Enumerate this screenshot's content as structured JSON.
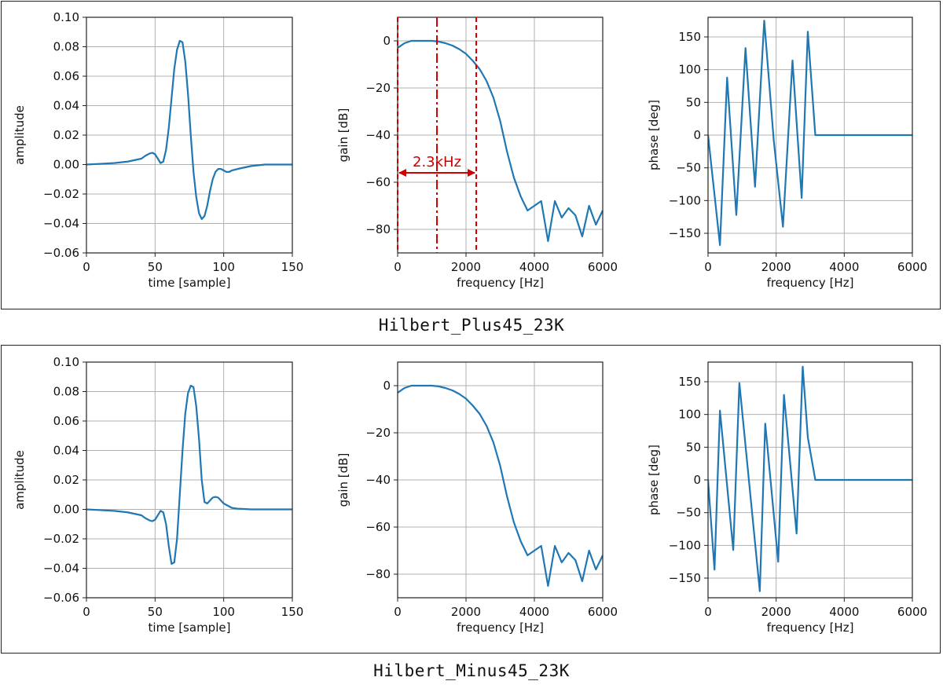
{
  "panels": [
    {
      "caption": "Hilbert_Plus45_23K",
      "annotation": {
        "label": "2.3kHz",
        "center_hz": 1150,
        "band_left_hz": 0,
        "band_right_hz": 2300
      }
    },
    {
      "caption": "Hilbert_Minus45_23K",
      "annotation": null
    }
  ],
  "colors": {
    "line": "#1f77b4",
    "annotation": "#cc0000",
    "grid": "#b0b0b0",
    "frame": "#222222"
  },
  "chart_data": [
    {
      "type": "line",
      "panel": 0,
      "xlabel": "time [sample]",
      "ylabel": "amplitude",
      "xlim": [
        0,
        150
      ],
      "ylim": [
        -0.06,
        0.1
      ],
      "xticks": [
        0,
        50,
        100,
        150
      ],
      "yticks": [
        -0.06,
        -0.04,
        -0.02,
        0.0,
        0.02,
        0.04,
        0.06,
        0.08,
        0.1
      ],
      "xticklabels": [
        "0",
        "50",
        "100",
        "150"
      ],
      "yticklabels": [
        "−0.06",
        "−0.04",
        "−0.02",
        "0.00",
        "0.02",
        "0.04",
        "0.06",
        "0.08",
        "0.10"
      ],
      "grid": true,
      "x": [
        0,
        10,
        20,
        30,
        35,
        40,
        43,
        46,
        48,
        50,
        52,
        54,
        56,
        58,
        60,
        62,
        64,
        66,
        68,
        70,
        72,
        74,
        76,
        78,
        80,
        82,
        84,
        86,
        88,
        90,
        92,
        94,
        96,
        98,
        100,
        102,
        104,
        106,
        110,
        120,
        130,
        150
      ],
      "y": [
        0.0,
        0.0005,
        0.001,
        0.002,
        0.003,
        0.004,
        0.006,
        0.0075,
        0.008,
        0.007,
        0.004,
        0.001,
        0.002,
        0.01,
        0.025,
        0.045,
        0.065,
        0.078,
        0.084,
        0.083,
        0.07,
        0.048,
        0.02,
        -0.005,
        -0.022,
        -0.033,
        -0.037,
        -0.035,
        -0.028,
        -0.018,
        -0.01,
        -0.005,
        -0.003,
        -0.003,
        -0.004,
        -0.005,
        -0.005,
        -0.004,
        -0.003,
        -0.001,
        0.0,
        0.0
      ]
    },
    {
      "type": "line",
      "panel": 0,
      "xlabel": "frequency [Hz]",
      "ylabel": "gain [dB]",
      "xlim": [
        0,
        6000
      ],
      "ylim": [
        -90,
        10
      ],
      "xticks": [
        0,
        2000,
        4000,
        6000
      ],
      "yticks": [
        -80,
        -60,
        -40,
        -20,
        0
      ],
      "xticklabels": [
        "0",
        "2000",
        "4000",
        "6000"
      ],
      "yticklabels": [
        "−80",
        "−60",
        "−40",
        "−20",
        "0"
      ],
      "grid": true,
      "x": [
        0,
        200,
        400,
        600,
        800,
        1000,
        1200,
        1400,
        1600,
        1800,
        2000,
        2200,
        2400,
        2600,
        2800,
        3000,
        3200,
        3400,
        3600,
        3800,
        4000,
        4200,
        4400,
        4600,
        4800,
        5000,
        5200,
        5400,
        5600,
        5800,
        6000
      ],
      "y": [
        -3,
        -1,
        0,
        0,
        0,
        0,
        -0.3,
        -1,
        -2,
        -3.5,
        -5.5,
        -8.5,
        -12,
        -17,
        -24,
        -34,
        -47,
        -58,
        -66,
        -72,
        -70,
        -68,
        -85,
        -68,
        -75,
        -71,
        -74,
        -83,
        -70,
        -78,
        -72
      ]
    },
    {
      "type": "line",
      "panel": 0,
      "xlabel": "frequency [Hz]",
      "ylabel": "phase [deg]",
      "xlim": [
        0,
        6000
      ],
      "ylim": [
        -180,
        180
      ],
      "xticks": [
        0,
        2000,
        4000,
        6000
      ],
      "yticks": [
        -150,
        -100,
        -50,
        0,
        50,
        100,
        150
      ],
      "xticklabels": [
        "0",
        "2000",
        "4000",
        "6000"
      ],
      "yticklabels": [
        "−150",
        "−100",
        "−50",
        "0",
        "50",
        "100",
        "150"
      ],
      "grid": true,
      "x": [
        0,
        350,
        560,
        830,
        1100,
        1380,
        1650,
        1930,
        2200,
        2480,
        2750,
        2930,
        3150,
        6000
      ],
      "y": [
        0,
        -168,
        88,
        -122,
        133,
        -79,
        175,
        -8,
        -140,
        114,
        -96,
        158,
        0,
        0
      ]
    },
    {
      "type": "line",
      "panel": 1,
      "xlabel": "time [sample]",
      "ylabel": "amplitude",
      "xlim": [
        0,
        150
      ],
      "ylim": [
        -0.06,
        0.1
      ],
      "xticks": [
        0,
        50,
        100,
        150
      ],
      "yticks": [
        -0.06,
        -0.04,
        -0.02,
        0.0,
        0.02,
        0.04,
        0.06,
        0.08,
        0.1
      ],
      "xticklabels": [
        "0",
        "50",
        "100",
        "150"
      ],
      "yticklabels": [
        "−0.06",
        "−0.04",
        "−0.02",
        "0.00",
        "0.02",
        "0.04",
        "0.06",
        "0.08",
        "0.10"
      ],
      "grid": true,
      "x": [
        0,
        10,
        20,
        30,
        35,
        40,
        43,
        46,
        48,
        50,
        52,
        54,
        56,
        58,
        60,
        62,
        64,
        66,
        68,
        70,
        72,
        74,
        76,
        78,
        80,
        82,
        84,
        86,
        88,
        90,
        92,
        94,
        96,
        98,
        100,
        102,
        104,
        106,
        110,
        120,
        130,
        150
      ],
      "y": [
        0.0,
        -0.0005,
        -0.001,
        -0.002,
        -0.003,
        -0.004,
        -0.006,
        -0.0075,
        -0.008,
        -0.007,
        -0.004,
        -0.001,
        -0.002,
        -0.01,
        -0.025,
        -0.037,
        -0.036,
        -0.02,
        0.01,
        0.04,
        0.065,
        0.079,
        0.084,
        0.083,
        0.07,
        0.048,
        0.02,
        0.005,
        0.004,
        0.006,
        0.008,
        0.0085,
        0.008,
        0.006,
        0.004,
        0.003,
        0.002,
        0.001,
        0.0005,
        0.0,
        0.0,
        0.0
      ]
    },
    {
      "type": "line",
      "panel": 1,
      "xlabel": "frequency [Hz]",
      "ylabel": "gain [dB]",
      "xlim": [
        0,
        6000
      ],
      "ylim": [
        -90,
        10
      ],
      "xticks": [
        0,
        2000,
        4000,
        6000
      ],
      "yticks": [
        -80,
        -60,
        -40,
        -20,
        0
      ],
      "xticklabels": [
        "0",
        "2000",
        "4000",
        "6000"
      ],
      "yticklabels": [
        "−80",
        "−60",
        "−40",
        "−20",
        "0"
      ],
      "grid": true,
      "x": [
        0,
        200,
        400,
        600,
        800,
        1000,
        1200,
        1400,
        1600,
        1800,
        2000,
        2200,
        2400,
        2600,
        2800,
        3000,
        3200,
        3400,
        3600,
        3800,
        4000,
        4200,
        4400,
        4600,
        4800,
        5000,
        5200,
        5400,
        5600,
        5800,
        6000
      ],
      "y": [
        -3,
        -1,
        0,
        0,
        0,
        0,
        -0.3,
        -1,
        -2,
        -3.5,
        -5.5,
        -8.5,
        -12,
        -17,
        -24,
        -34,
        -47,
        -58,
        -66,
        -72,
        -70,
        -68,
        -85,
        -68,
        -75,
        -71,
        -74,
        -83,
        -70,
        -78,
        -72
      ]
    },
    {
      "type": "line",
      "panel": 1,
      "xlabel": "frequency [Hz]",
      "ylabel": "phase [deg]",
      "xlim": [
        0,
        6000
      ],
      "ylim": [
        -180,
        180
      ],
      "xticks": [
        0,
        2000,
        4000,
        6000
      ],
      "yticks": [
        -150,
        -100,
        -50,
        0,
        50,
        100,
        150
      ],
      "xticklabels": [
        "0",
        "2000",
        "4000",
        "6000"
      ],
      "yticklabels": [
        "−150",
        "−100",
        "−50",
        "0",
        "50",
        "100",
        "150"
      ],
      "grid": true,
      "x": [
        0,
        190,
        350,
        740,
        920,
        1520,
        1680,
        2060,
        2230,
        2600,
        2780,
        2930,
        3150,
        6000
      ],
      "y": [
        0,
        -137,
        106,
        -107,
        148,
        -170,
        86,
        -125,
        130,
        -82,
        173,
        65,
        0,
        0
      ]
    }
  ]
}
